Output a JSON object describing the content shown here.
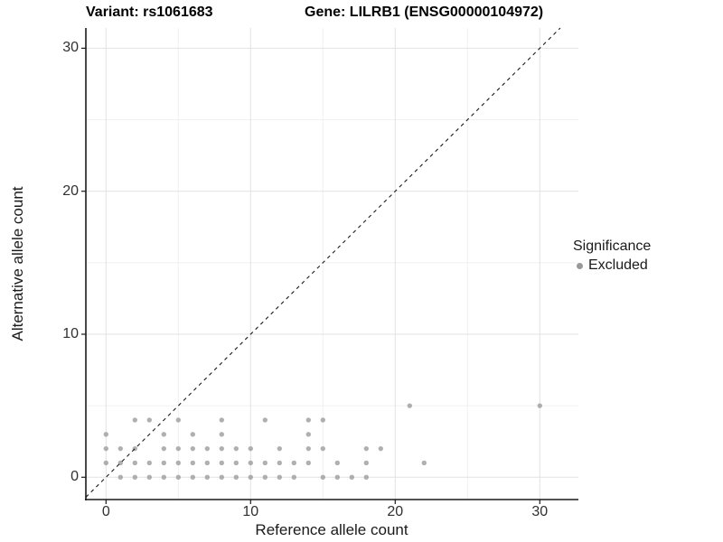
{
  "titles": {
    "variant": "Variant: rs1061683",
    "gene": "Gene: LILRB1 (ENSG00000104972)"
  },
  "chart_data": {
    "type": "scatter",
    "xlabel": "Reference allele count",
    "ylabel": "Alternative allele count",
    "xlim": [
      -1.4,
      32.7
    ],
    "ylim": [
      -1.6,
      31.4
    ],
    "x_ticks": [
      0,
      10,
      20,
      30
    ],
    "y_ticks": [
      0,
      10,
      20,
      30
    ],
    "x_minor_gridlines": [
      5,
      15,
      25
    ],
    "y_minor_gridlines": [
      5,
      15,
      25
    ],
    "grid": true,
    "legend": {
      "title": "Significance",
      "position": "right",
      "items": [
        {
          "label": "Excluded",
          "color": "#999999"
        }
      ]
    },
    "reference_line": {
      "type": "diagonal",
      "equation": "y = x",
      "style": "dashed",
      "color": "#1a1a1a"
    },
    "series": [
      {
        "name": "Excluded",
        "color": "#9c9c9c",
        "opacity": 0.8,
        "points": [
          [
            0,
            1
          ],
          [
            0,
            2
          ],
          [
            0,
            3
          ],
          [
            1,
            0
          ],
          [
            1,
            1
          ],
          [
            1,
            2
          ],
          [
            2,
            0
          ],
          [
            2,
            1
          ],
          [
            2,
            2
          ],
          [
            2,
            4
          ],
          [
            3,
            0
          ],
          [
            3,
            1
          ],
          [
            3,
            4
          ],
          [
            4,
            0
          ],
          [
            4,
            1
          ],
          [
            4,
            2
          ],
          [
            4,
            3
          ],
          [
            5,
            0
          ],
          [
            5,
            1
          ],
          [
            5,
            2
          ],
          [
            5,
            4
          ],
          [
            6,
            0
          ],
          [
            6,
            1
          ],
          [
            6,
            2
          ],
          [
            6,
            3
          ],
          [
            7,
            0
          ],
          [
            7,
            1
          ],
          [
            7,
            2
          ],
          [
            8,
            0
          ],
          [
            8,
            1
          ],
          [
            8,
            2
          ],
          [
            8,
            3
          ],
          [
            8,
            4
          ],
          [
            9,
            0
          ],
          [
            9,
            1
          ],
          [
            9,
            2
          ],
          [
            10,
            0
          ],
          [
            10,
            1
          ],
          [
            10,
            2
          ],
          [
            11,
            0
          ],
          [
            11,
            1
          ],
          [
            11,
            4
          ],
          [
            12,
            0
          ],
          [
            12,
            1
          ],
          [
            12,
            2
          ],
          [
            13,
            0
          ],
          [
            13,
            1
          ],
          [
            14,
            1
          ],
          [
            14,
            2
          ],
          [
            14,
            3
          ],
          [
            14,
            4
          ],
          [
            15,
            0
          ],
          [
            15,
            2
          ],
          [
            15,
            4
          ],
          [
            16,
            0
          ],
          [
            16,
            1
          ],
          [
            17,
            0
          ],
          [
            18,
            0
          ],
          [
            18,
            1
          ],
          [
            18,
            2
          ],
          [
            19,
            2
          ],
          [
            21,
            5
          ],
          [
            22,
            1
          ],
          [
            30,
            5
          ]
        ]
      }
    ]
  },
  "colors": {
    "panel_background": "#ffffff",
    "major_gridline": "#e2e2e2",
    "minor_gridline": "#f0f0f0",
    "axis_line": "#1a1a1a",
    "tick_mark": "#1a1a1a",
    "tick_label": "#303030"
  }
}
